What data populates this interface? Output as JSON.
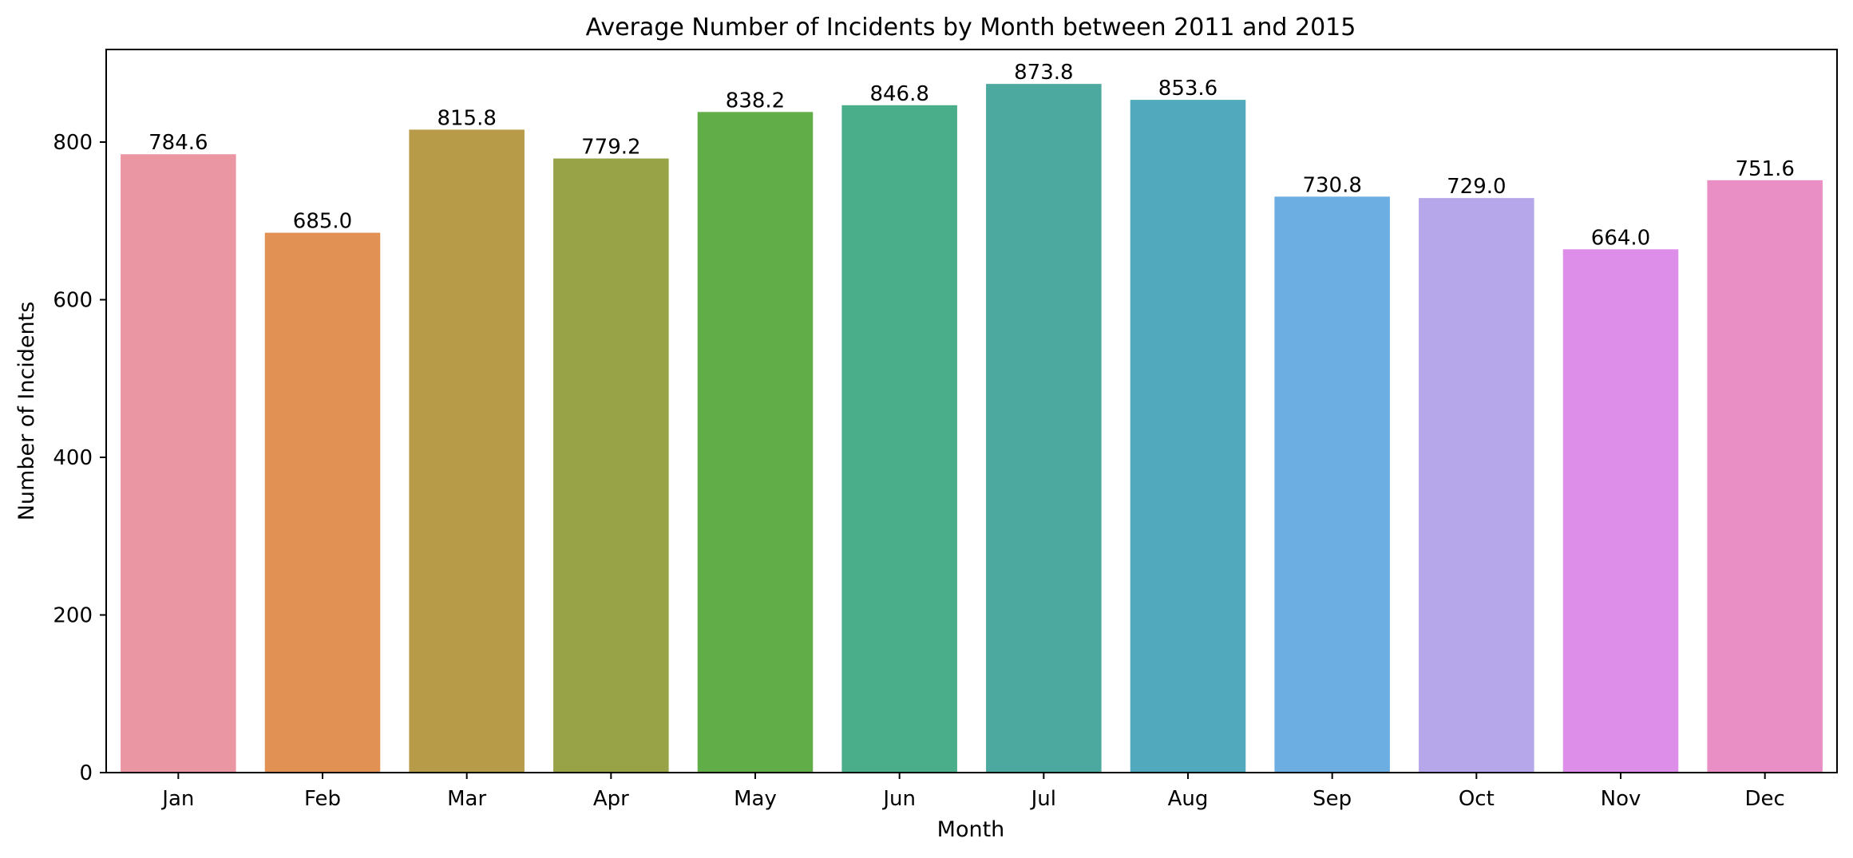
{
  "chart_data": {
    "type": "bar",
    "title": "Average Number of Incidents by Month between 2011 and 2015",
    "xlabel": "Month",
    "ylabel": "Number of Incidents",
    "categories": [
      "Jan",
      "Feb",
      "Mar",
      "Apr",
      "May",
      "Jun",
      "Jul",
      "Aug",
      "Sep",
      "Oct",
      "Nov",
      "Dec"
    ],
    "values": [
      784.6,
      685.0,
      815.8,
      779.2,
      838.2,
      846.8,
      873.8,
      853.6,
      730.8,
      729.0,
      664.0,
      751.6
    ],
    "value_labels": [
      "784.6",
      "685.0",
      "815.8",
      "779.2",
      "838.2",
      "846.8",
      "873.8",
      "853.6",
      "730.8",
      "729.0",
      "664.0",
      "751.6"
    ],
    "colors": [
      "#ea96a3",
      "#e19153",
      "#b89b49",
      "#98a246",
      "#61ae48",
      "#4aae8a",
      "#4ca9a0",
      "#50a9bd",
      "#6daee2",
      "#b6a6ea",
      "#dd8ee8",
      "#e98fc5"
    ],
    "y_ticks": [
      0,
      200,
      400,
      600,
      800
    ],
    "y_tick_labels": [
      "0",
      "200",
      "400",
      "600",
      "800"
    ],
    "ylim": [
      0,
      917.5
    ],
    "grid": false,
    "legend": "none"
  }
}
